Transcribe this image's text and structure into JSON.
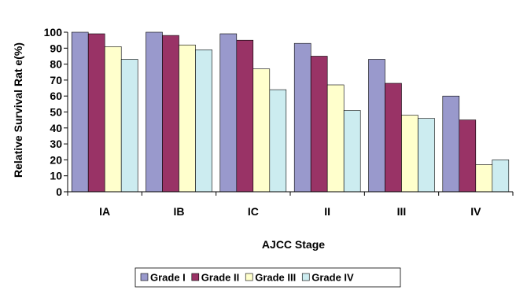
{
  "chart_data": {
    "type": "bar",
    "categories": [
      "IA",
      "IB",
      "IC",
      "II",
      "III",
      "IV"
    ],
    "series": [
      {
        "name": "Grade I",
        "color": "#9999cc",
        "values": [
          100,
          100,
          99,
          93,
          83,
          60
        ]
      },
      {
        "name": "Grade II",
        "color": "#993366",
        "values": [
          99,
          98,
          95,
          85,
          68,
          45
        ]
      },
      {
        "name": "Grade III",
        "color": "#ffffcc",
        "values": [
          91,
          92,
          77,
          67,
          48,
          17
        ]
      },
      {
        "name": "Grade IV",
        "color": "#ccecf0",
        "values": [
          83,
          89,
          64,
          51,
          46,
          20
        ]
      }
    ],
    "yticks": [
      0,
      10,
      20,
      30,
      40,
      50,
      60,
      70,
      80,
      90,
      100
    ],
    "ylim": [
      0,
      100
    ],
    "xlabel": "AJCC Stage",
    "ylabel": "Relative Survival Rat e(%)",
    "grid": false,
    "legend_position": "bottom"
  }
}
